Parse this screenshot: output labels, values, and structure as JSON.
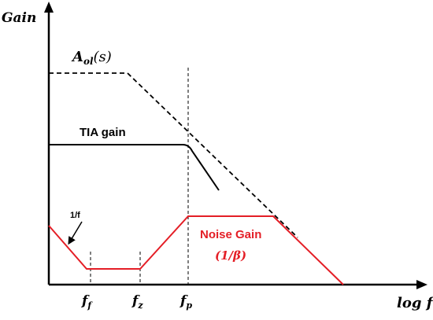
{
  "axes": {
    "y_label": "Gain",
    "x_label": "log f"
  },
  "curves": {
    "open_loop": {
      "label_main": "A",
      "label_sub": "ol",
      "label_arg": "(s)"
    },
    "tia": {
      "label": "TIA gain"
    },
    "noise": {
      "label": "Noise Gain",
      "sub_label": "(1/β)",
      "slope_label": "1/f"
    }
  },
  "frequencies": [
    {
      "main": "f",
      "sub": "f"
    },
    {
      "main": "f",
      "sub": "z"
    },
    {
      "main": "f",
      "sub": "p"
    }
  ],
  "colors": {
    "axis": "#000000",
    "open_loop": "#000000",
    "tia": "#000000",
    "noise": "#e41e26",
    "guide": "#000000"
  }
}
